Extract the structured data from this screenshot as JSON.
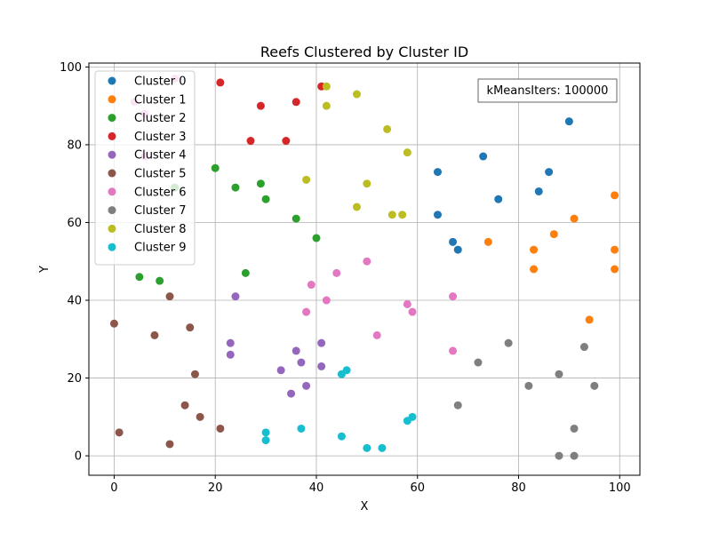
{
  "chart_data": {
    "type": "scatter",
    "title": "Reefs Clustered by Cluster ID",
    "xlabel": "X",
    "ylabel": "Y",
    "xlim": [
      -5,
      104
    ],
    "ylim": [
      -5,
      101
    ],
    "xticks": [
      0,
      20,
      40,
      60,
      80,
      100
    ],
    "yticks": [
      0,
      20,
      40,
      60,
      80,
      100
    ],
    "grid": true,
    "legend_position": "top-left",
    "annotation": "kMeansIters: 100000",
    "series": [
      {
        "name": "Cluster 0",
        "color": "#1f77b4",
        "points": [
          [
            82,
            92
          ],
          [
            90,
            86
          ],
          [
            73,
            77
          ],
          [
            86,
            73
          ],
          [
            64,
            73
          ],
          [
            84,
            68
          ],
          [
            76,
            66
          ],
          [
            64,
            62
          ],
          [
            67,
            55
          ],
          [
            68,
            53
          ]
        ]
      },
      {
        "name": "Cluster 1",
        "color": "#ff7f0e",
        "points": [
          [
            99,
            67
          ],
          [
            91,
            61
          ],
          [
            87,
            57
          ],
          [
            74,
            55
          ],
          [
            83,
            53
          ],
          [
            99,
            53
          ],
          [
            83,
            48
          ],
          [
            99,
            48
          ],
          [
            94,
            35
          ]
        ]
      },
      {
        "name": "Cluster 2",
        "color": "#2ca02c",
        "points": [
          [
            20,
            74
          ],
          [
            29,
            70
          ],
          [
            24,
            69
          ],
          [
            12,
            69
          ],
          [
            30,
            66
          ],
          [
            36,
            61
          ],
          [
            40,
            56
          ],
          [
            26,
            47
          ],
          [
            5,
            46
          ],
          [
            9,
            45
          ]
        ]
      },
      {
        "name": "Cluster 3",
        "color": "#d62728",
        "points": [
          [
            21,
            96
          ],
          [
            41,
            95
          ],
          [
            36,
            91
          ],
          [
            29,
            90
          ],
          [
            27,
            81
          ],
          [
            34,
            81
          ]
        ]
      },
      {
        "name": "Cluster 4",
        "color": "#9467bd",
        "points": [
          [
            24,
            41
          ],
          [
            23,
            29
          ],
          [
            41,
            29
          ],
          [
            23,
            26
          ],
          [
            36,
            27
          ],
          [
            37,
            24
          ],
          [
            41,
            23
          ],
          [
            33,
            22
          ],
          [
            38,
            18
          ],
          [
            35,
            16
          ]
        ]
      },
      {
        "name": "Cluster 5",
        "color": "#8c564b",
        "points": [
          [
            11,
            41
          ],
          [
            0,
            34
          ],
          [
            15,
            33
          ],
          [
            8,
            31
          ],
          [
            16,
            21
          ],
          [
            14,
            13
          ],
          [
            17,
            10
          ],
          [
            21,
            7
          ],
          [
            1,
            6
          ],
          [
            11,
            3
          ]
        ]
      },
      {
        "name": "Cluster 6",
        "color": "#e377c2",
        "points": [
          [
            12,
            97
          ],
          [
            4,
            91
          ],
          [
            6,
            88
          ],
          [
            6,
            77
          ],
          [
            50,
            50
          ],
          [
            44,
            47
          ],
          [
            39,
            44
          ],
          [
            67,
            41
          ],
          [
            42,
            40
          ],
          [
            58,
            39
          ],
          [
            38,
            37
          ],
          [
            59,
            37
          ],
          [
            52,
            31
          ],
          [
            67,
            27
          ]
        ]
      },
      {
        "name": "Cluster 7",
        "color": "#7f7f7f",
        "points": [
          [
            78,
            29
          ],
          [
            93,
            28
          ],
          [
            72,
            24
          ],
          [
            88,
            21
          ],
          [
            82,
            18
          ],
          [
            95,
            18
          ],
          [
            68,
            13
          ],
          [
            91,
            7
          ],
          [
            88,
            0
          ],
          [
            91,
            0
          ]
        ]
      },
      {
        "name": "Cluster 8",
        "color": "#bcbd22",
        "points": [
          [
            42,
            95
          ],
          [
            48,
            93
          ],
          [
            42,
            90
          ],
          [
            54,
            84
          ],
          [
            58,
            78
          ],
          [
            38,
            71
          ],
          [
            50,
            70
          ],
          [
            48,
            64
          ],
          [
            55,
            62
          ],
          [
            57,
            62
          ]
        ]
      },
      {
        "name": "Cluster 9",
        "color": "#17becf",
        "points": [
          [
            46,
            22
          ],
          [
            45,
            21
          ],
          [
            59,
            10
          ],
          [
            58,
            9
          ],
          [
            37,
            7
          ],
          [
            30,
            6
          ],
          [
            45,
            5
          ],
          [
            30,
            4
          ],
          [
            50,
            2
          ],
          [
            53,
            2
          ]
        ]
      }
    ]
  }
}
